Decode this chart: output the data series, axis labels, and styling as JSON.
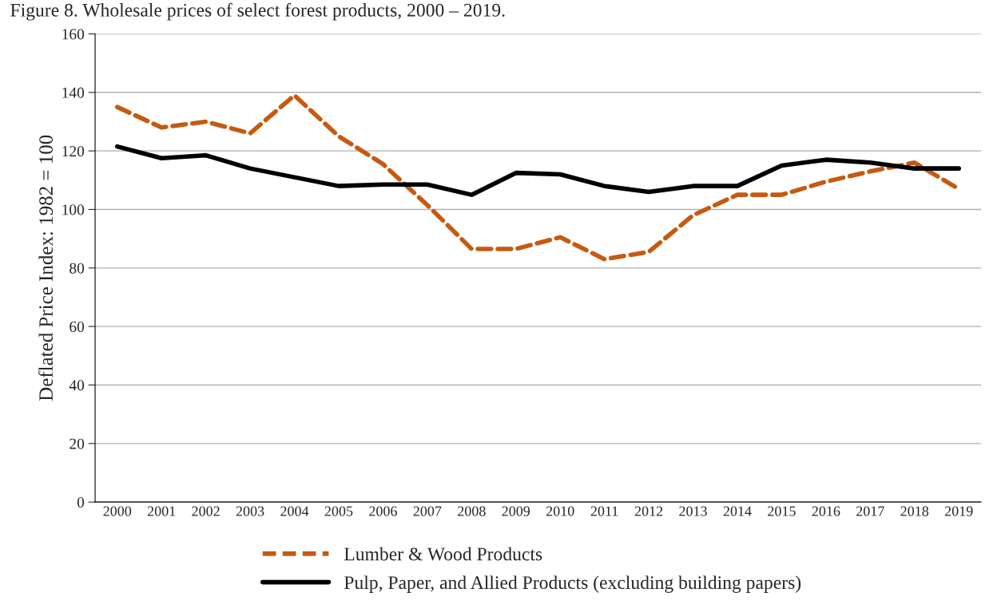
{
  "chart_data": {
    "type": "line",
    "title": "Figure 8. Wholesale prices of select forest products, 2000 – 2019.",
    "ylabel": "Deflated Price Index: 1982 = 100",
    "categories": [
      "2000",
      "2001",
      "2002",
      "2003",
      "2004",
      "2005",
      "2006",
      "2007",
      "2008",
      "2009",
      "2010",
      "2011",
      "2012",
      "2013",
      "2014",
      "2015",
      "2016",
      "2017",
      "2018",
      "2019"
    ],
    "series": [
      {
        "name": "Lumber & Wood Products",
        "color": "#c55a11",
        "line_style": "dashed",
        "values": [
          135,
          128,
          130,
          126,
          139,
          125,
          115.5,
          101.5,
          86.5,
          86.5,
          90.5,
          83,
          85.5,
          98,
          105,
          105,
          109.5,
          113,
          116,
          107
        ]
      },
      {
        "name": "Pulp, Paper, and Allied Products (excluding building papers)",
        "color": "#000000",
        "line_style": "solid",
        "values": [
          121.5,
          117.5,
          118.5,
          114,
          111,
          108,
          108.5,
          108.5,
          105,
          112.5,
          112,
          108,
          106,
          108,
          108,
          115,
          117,
          116,
          114,
          114
        ]
      }
    ],
    "ylim": [
      0,
      160
    ],
    "yticks": [
      0,
      20,
      40,
      60,
      80,
      100,
      120,
      140,
      160
    ],
    "grid": "y",
    "legend": "bottom",
    "marker": "none"
  }
}
